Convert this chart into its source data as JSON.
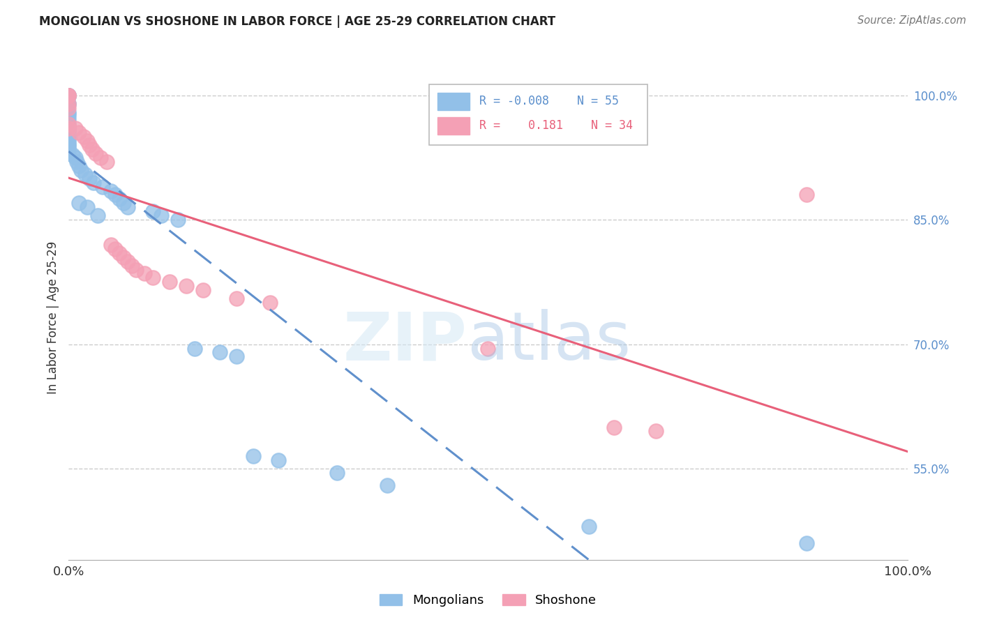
{
  "title": "MONGOLIAN VS SHOSHONE IN LABOR FORCE | AGE 25-29 CORRELATION CHART",
  "source": "Source: ZipAtlas.com",
  "ylabel": "In Labor Force | Age 25-29",
  "xlim": [
    0.0,
    1.0
  ],
  "ylim": [
    0.44,
    1.025
  ],
  "yticks": [
    0.55,
    0.7,
    0.85,
    1.0
  ],
  "ytick_labels": [
    "55.0%",
    "70.0%",
    "85.0%",
    "100.0%"
  ],
  "mongolian_color": "#92C0E8",
  "shoshone_color": "#F4A0B5",
  "mongolian_line_color": "#6090CC",
  "shoshone_line_color": "#E8607A",
  "background_color": "#ffffff",
  "mongolian_x": [
    0.0,
    0.0,
    0.0,
    0.0,
    0.0,
    0.0,
    0.0,
    0.0,
    0.0,
    0.0,
    0.0,
    0.0,
    0.0,
    0.0,
    0.0,
    0.0,
    0.0,
    0.0,
    0.0,
    0.0,
    0.0,
    0.0,
    0.0,
    0.0,
    0.0,
    0.0,
    0.005,
    0.008,
    0.01,
    0.012,
    0.015,
    0.02,
    0.025,
    0.03,
    0.04,
    0.05,
    0.055,
    0.06,
    0.065,
    0.07,
    0.1,
    0.11,
    0.13,
    0.15,
    0.18,
    0.2,
    0.22,
    0.25,
    0.62,
    0.88,
    0.012,
    0.022,
    0.035,
    0.32,
    0.38
  ],
  "mongolian_y": [
    1.0,
    1.0,
    1.0,
    1.0,
    1.0,
    0.99,
    0.99,
    0.98,
    0.978,
    0.975,
    0.97,
    0.965,
    0.963,
    0.96,
    0.958,
    0.956,
    0.954,
    0.952,
    0.95,
    0.948,
    0.945,
    0.942,
    0.94,
    0.938,
    0.935,
    0.93,
    0.928,
    0.925,
    0.92,
    0.915,
    0.91,
    0.905,
    0.9,
    0.895,
    0.89,
    0.885,
    0.88,
    0.875,
    0.87,
    0.865,
    0.86,
    0.855,
    0.85,
    0.695,
    0.69,
    0.685,
    0.565,
    0.56,
    0.48,
    0.46,
    0.87,
    0.865,
    0.855,
    0.545,
    0.53
  ],
  "shoshone_x": [
    0.0,
    0.0,
    0.0,
    0.0,
    0.0,
    0.0,
    0.008,
    0.012,
    0.018,
    0.022,
    0.025,
    0.028,
    0.032,
    0.038,
    0.045,
    0.05,
    0.055,
    0.06,
    0.065,
    0.07,
    0.075,
    0.08,
    0.09,
    0.1,
    0.12,
    0.14,
    0.16,
    0.2,
    0.5,
    0.65,
    0.7,
    0.88,
    0.0,
    0.24
  ],
  "shoshone_y": [
    1.0,
    1.0,
    1.0,
    0.99,
    0.985,
    0.965,
    0.96,
    0.955,
    0.95,
    0.945,
    0.94,
    0.935,
    0.93,
    0.925,
    0.92,
    0.82,
    0.815,
    0.81,
    0.805,
    0.8,
    0.795,
    0.79,
    0.785,
    0.78,
    0.775,
    0.77,
    0.765,
    0.755,
    0.695,
    0.6,
    0.595,
    0.88,
    0.96,
    0.75
  ]
}
